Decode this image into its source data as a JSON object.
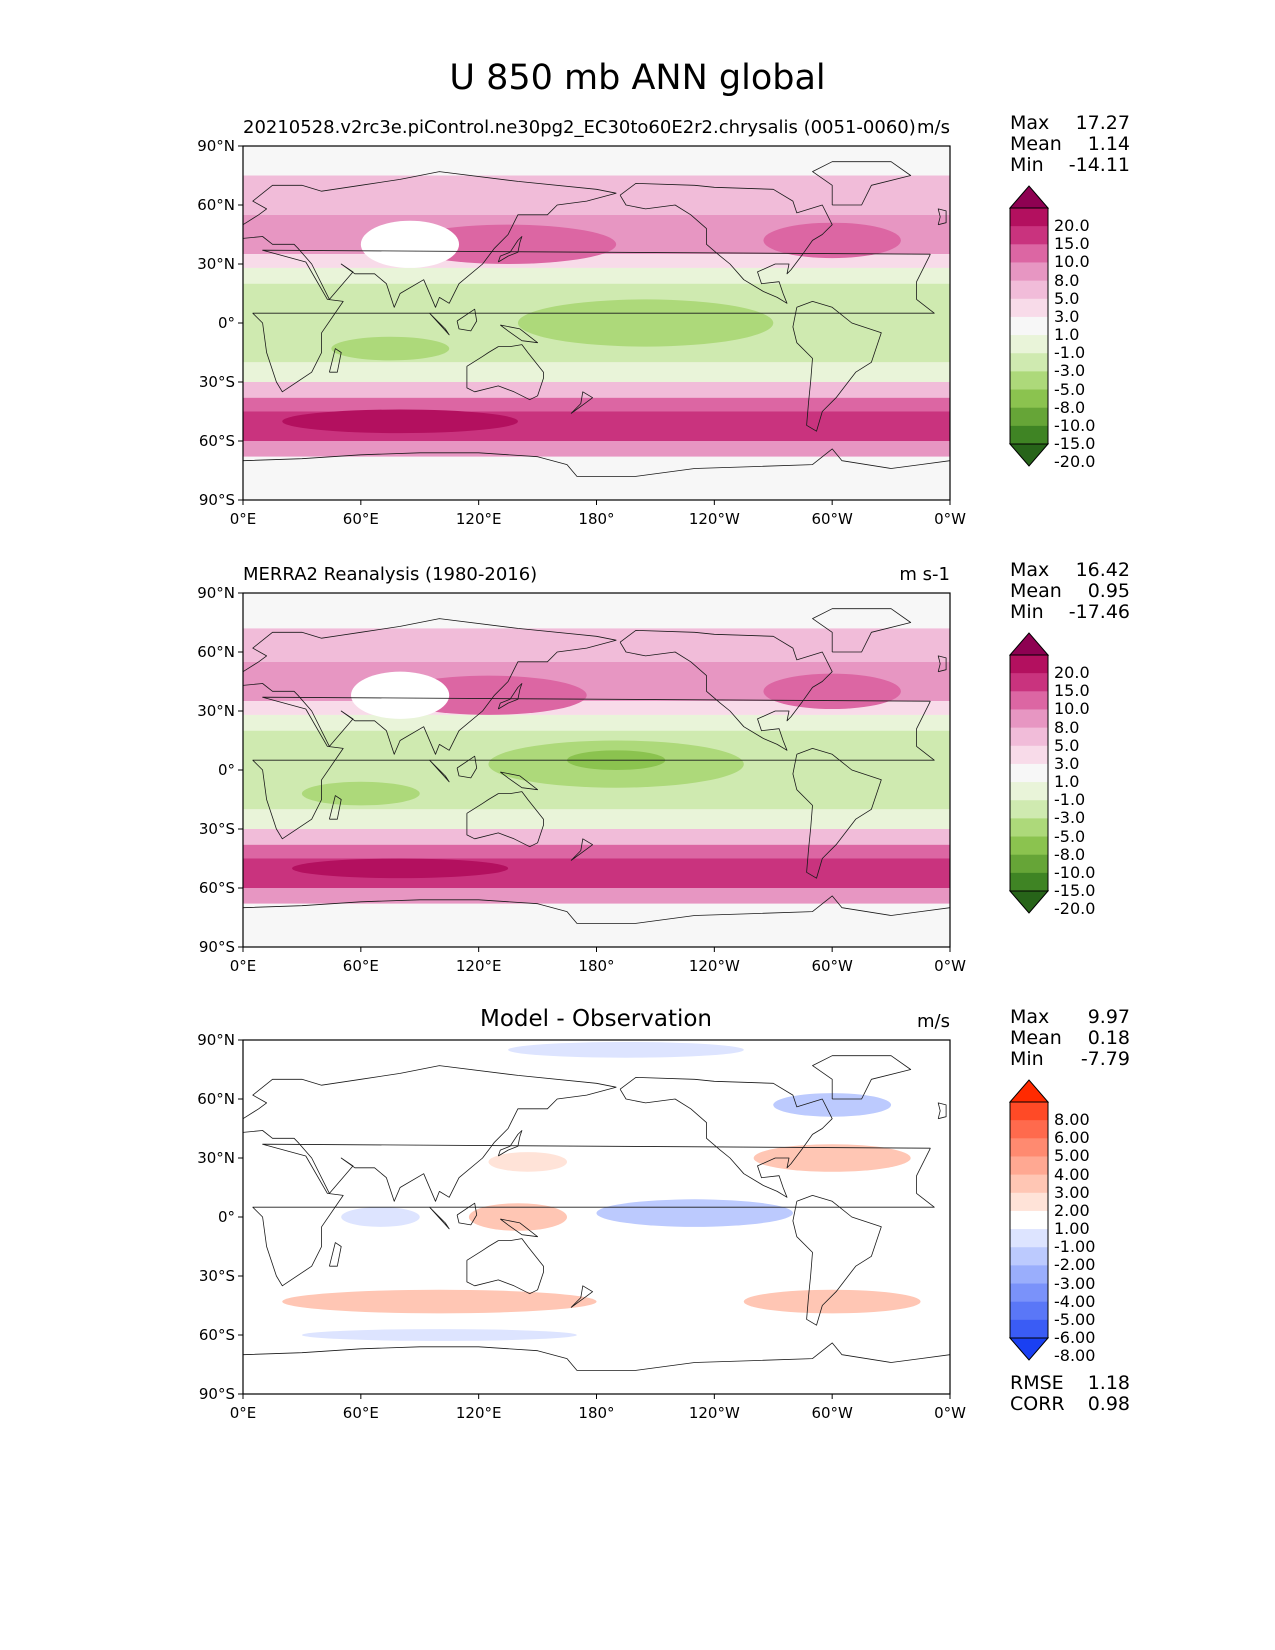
{
  "title": "U 850 mb ANN global",
  "axes": {
    "lat_labels": [
      "90°N",
      "60°N",
      "30°N",
      "0°",
      "30°S",
      "60°S",
      "90°S"
    ],
    "lon_labels": [
      "0°E",
      "60°E",
      "120°E",
      "180°",
      "120°W",
      "60°W",
      "0°W"
    ]
  },
  "panels": [
    {
      "title": "20210528.v2rc3e.piControl.ne30pg2_EC30to60E2r2.chrysalis (0051-0060)",
      "title_align": "left",
      "units": "m/s",
      "stats": [
        {
          "name": "Max",
          "value": "17.27"
        },
        {
          "name": "Mean",
          "value": "1.14"
        },
        {
          "name": "Min",
          "value": "-14.11"
        }
      ],
      "colorbar": {
        "labels": [
          "20.0",
          "15.0",
          "10.0",
          "8.0",
          "5.0",
          "3.0",
          "1.0",
          "-1.0",
          "-3.0",
          "-5.0",
          "-8.0",
          "-10.0",
          "-15.0",
          "-20.0"
        ],
        "colors": [
          "#8e0152",
          "#b3105f",
          "#c9337e",
          "#dc66a3",
          "#e796c2",
          "#f1bcd9",
          "#f8dbe9",
          "#f7f7f7",
          "#e9f4d9",
          "#cfeab0",
          "#add97a",
          "#8bc34f",
          "#66a537",
          "#3f8424",
          "#276419"
        ]
      },
      "bands": [
        {
          "lat": [
            90,
            75
          ],
          "color": "#f7f7f7"
        },
        {
          "lat": [
            75,
            55
          ],
          "color": "#f1bcd9"
        },
        {
          "lat": [
            55,
            35
          ],
          "color": "#e796c2"
        },
        {
          "lat": [
            35,
            28
          ],
          "color": "#f8dbe9"
        },
        {
          "lat": [
            28,
            20
          ],
          "color": "#e9f4d9"
        },
        {
          "lat": [
            20,
            -20
          ],
          "color": "#cfeab0"
        },
        {
          "lat": [
            -20,
            -30
          ],
          "color": "#e9f4d9"
        },
        {
          "lat": [
            -30,
            -38
          ],
          "color": "#f1bcd9"
        },
        {
          "lat": [
            -38,
            -45
          ],
          "color": "#dc66a3"
        },
        {
          "lat": [
            -45,
            -60
          ],
          "color": "#c9337e"
        },
        {
          "lat": [
            -60,
            -68
          ],
          "color": "#e796c2"
        },
        {
          "lat": [
            -68,
            -90
          ],
          "color": "#f7f7f7"
        }
      ],
      "blobs": [
        {
          "lon": 135,
          "lat": 40,
          "rlon": 55,
          "rlat": 10,
          "color": "#dc66a3"
        },
        {
          "lon": 300,
          "lat": 42,
          "rlon": 35,
          "rlat": 9,
          "color": "#dc66a3"
        },
        {
          "lon": 205,
          "lat": 0,
          "rlon": 65,
          "rlat": 12,
          "color": "#add97a"
        },
        {
          "lon": 75,
          "lat": -13,
          "rlon": 30,
          "rlat": 6,
          "color": "#add97a"
        },
        {
          "lon": 80,
          "lat": -50,
          "rlon": 60,
          "rlat": 6,
          "color": "#b3105f"
        },
        {
          "lon": 85,
          "lat": 40,
          "rlon": 25,
          "rlat": 12,
          "color": "#ffffff"
        }
      ]
    },
    {
      "title": "MERRA2 Reanalysis (1980-2016)",
      "title_align": "left",
      "units": "m s-1",
      "stats": [
        {
          "name": "Max",
          "value": "16.42"
        },
        {
          "name": "Mean",
          "value": "0.95"
        },
        {
          "name": "Min",
          "value": "-17.46"
        }
      ],
      "colorbar": {
        "labels": [
          "20.0",
          "15.0",
          "10.0",
          "8.0",
          "5.0",
          "3.0",
          "1.0",
          "-1.0",
          "-3.0",
          "-5.0",
          "-8.0",
          "-10.0",
          "-15.0",
          "-20.0"
        ],
        "colors": [
          "#8e0152",
          "#b3105f",
          "#c9337e",
          "#dc66a3",
          "#e796c2",
          "#f1bcd9",
          "#f8dbe9",
          "#f7f7f7",
          "#e9f4d9",
          "#cfeab0",
          "#add97a",
          "#8bc34f",
          "#66a537",
          "#3f8424",
          "#276419"
        ]
      },
      "bands": [
        {
          "lat": [
            90,
            72
          ],
          "color": "#f7f7f7"
        },
        {
          "lat": [
            72,
            55
          ],
          "color": "#f1bcd9"
        },
        {
          "lat": [
            55,
            35
          ],
          "color": "#e796c2"
        },
        {
          "lat": [
            35,
            28
          ],
          "color": "#f8dbe9"
        },
        {
          "lat": [
            28,
            20
          ],
          "color": "#e9f4d9"
        },
        {
          "lat": [
            20,
            -20
          ],
          "color": "#cfeab0"
        },
        {
          "lat": [
            -20,
            -30
          ],
          "color": "#e9f4d9"
        },
        {
          "lat": [
            -30,
            -38
          ],
          "color": "#f1bcd9"
        },
        {
          "lat": [
            -38,
            -45
          ],
          "color": "#dc66a3"
        },
        {
          "lat": [
            -45,
            -60
          ],
          "color": "#c9337e"
        },
        {
          "lat": [
            -60,
            -68
          ],
          "color": "#e796c2"
        },
        {
          "lat": [
            -68,
            -90
          ],
          "color": "#f7f7f7"
        }
      ],
      "blobs": [
        {
          "lon": 125,
          "lat": 38,
          "rlon": 50,
          "rlat": 10,
          "color": "#dc66a3"
        },
        {
          "lon": 300,
          "lat": 40,
          "rlon": 35,
          "rlat": 9,
          "color": "#dc66a3"
        },
        {
          "lon": 190,
          "lat": 3,
          "rlon": 65,
          "rlat": 12,
          "color": "#add97a"
        },
        {
          "lon": 190,
          "lat": 5,
          "rlon": 25,
          "rlat": 5,
          "color": "#8bc34f"
        },
        {
          "lon": 60,
          "lat": -12,
          "rlon": 30,
          "rlat": 6,
          "color": "#add97a"
        },
        {
          "lon": 80,
          "lat": -50,
          "rlon": 55,
          "rlat": 5,
          "color": "#b3105f"
        },
        {
          "lon": 80,
          "lat": 38,
          "rlon": 25,
          "rlat": 12,
          "color": "#ffffff"
        }
      ]
    },
    {
      "title": "Model - Observation",
      "title_align": "center",
      "units": "m/s",
      "stats": [
        {
          "name": "Max",
          "value": "9.97"
        },
        {
          "name": "Mean",
          "value": "0.18"
        },
        {
          "name": "Min",
          "value": "-7.79"
        }
      ],
      "colorbar": {
        "labels": [
          "8.00",
          "6.00",
          "5.00",
          "4.00",
          "3.00",
          "2.00",
          "1.00",
          "-1.00",
          "-2.00",
          "-3.00",
          "-4.00",
          "-5.00",
          "-6.00",
          "-8.00"
        ],
        "colors": [
          "#ff2a00",
          "#ff4a26",
          "#ff6a4d",
          "#ff8a70",
          "#ffa892",
          "#ffc6b4",
          "#ffe3d8",
          "#ffffff",
          "#dde4ff",
          "#bccafe",
          "#9aaefc",
          "#7a92fa",
          "#5a77f7",
          "#3a5cf5",
          "#1a40f2"
        ]
      },
      "bands": [
        {
          "lat": [
            90,
            -90
          ],
          "color": "#ffffff"
        }
      ],
      "blobs": [
        {
          "lon": 195,
          "lat": 85,
          "rlon": 60,
          "rlat": 4,
          "color": "#dde4ff"
        },
        {
          "lon": 300,
          "lat": 57,
          "rlon": 30,
          "rlat": 6,
          "color": "#bccafe"
        },
        {
          "lon": 300,
          "lat": 30,
          "rlon": 40,
          "rlat": 7,
          "color": "#ffc6b4"
        },
        {
          "lon": 145,
          "lat": 28,
          "rlon": 20,
          "rlat": 5,
          "color": "#ffe3d8"
        },
        {
          "lon": 230,
          "lat": 2,
          "rlon": 50,
          "rlat": 7,
          "color": "#bccafe"
        },
        {
          "lon": 70,
          "lat": 0,
          "rlon": 20,
          "rlat": 5,
          "color": "#dde4ff"
        },
        {
          "lon": 140,
          "lat": 0,
          "rlon": 25,
          "rlat": 7,
          "color": "#ffc6b4"
        },
        {
          "lon": 100,
          "lat": -43,
          "rlon": 80,
          "rlat": 6,
          "color": "#ffc6b4"
        },
        {
          "lon": 300,
          "lat": -43,
          "rlon": 45,
          "rlat": 6,
          "color": "#ffc6b4"
        },
        {
          "lon": 100,
          "lat": -60,
          "rlon": 70,
          "rlat": 3,
          "color": "#dde4ff"
        }
      ]
    }
  ],
  "footer_stats": [
    {
      "name": "RMSE",
      "value": "1.18"
    },
    {
      "name": "CORR",
      "value": "0.98"
    }
  ]
}
